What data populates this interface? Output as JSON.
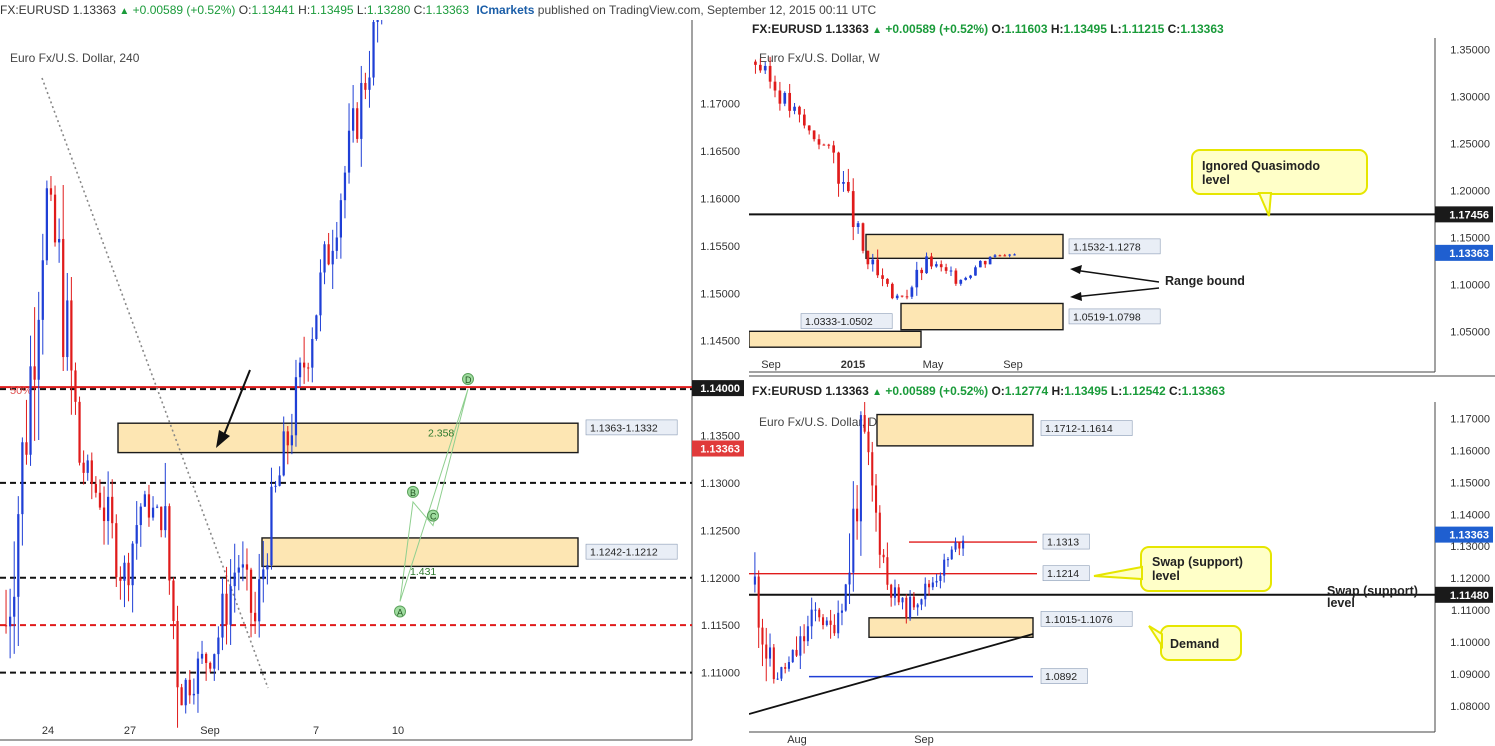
{
  "topbar": {
    "symbol": "FX:EURUSD",
    "price": "1.13363",
    "change": "+0.00589 (+0.52%)",
    "o_label": "O:",
    "o": "1.13441",
    "h_label": "H:",
    "h": "1.13495",
    "l_label": "L:",
    "l": "1.13280",
    "c_label": "C:",
    "c": "1.13363",
    "brand": "ICmarkets",
    "published": "published on TradingView.com, September 12, 2015 00:11 UTC"
  },
  "colors": {
    "up": "#1f3fd6",
    "down": "#e01b1b",
    "zone_fill": "#fde6b3",
    "zone_border": "#1a1a1a",
    "callout_fill": "#ffffc8",
    "callout_border": "#e6e600",
    "price_tag": "#1f5fd0",
    "red_tag": "#e03a3a",
    "black_tag": "#1a1a1a"
  },
  "chart_data": [
    {
      "type": "candlestick",
      "panel": "h4",
      "title": "Euro Fx/U.S. Dollar, 240",
      "ylim": [
        1.105,
        1.1765
      ],
      "y_ticks": [
        "1.17000",
        "1.16500",
        "1.16000",
        "1.15500",
        "1.15000",
        "1.14500",
        "1.14000",
        "1.13500",
        "1.13000",
        "1.12500",
        "1.12000",
        "1.11500",
        "1.11000"
      ],
      "x_ticks": [
        "24",
        "27",
        "Sep",
        "7",
        "10"
      ],
      "levels": [
        {
          "value": 1.14,
          "label": "1.14000",
          "style": "dashed-red-black",
          "tag": "black"
        },
        {
          "value": 1.13,
          "label": "1.13000",
          "style": "dashed-black",
          "tag": "plain"
        },
        {
          "value": 1.12,
          "label": "1.12000",
          "style": "dashed-black",
          "tag": "plain"
        },
        {
          "value": 1.115,
          "label": "1.11500",
          "style": "dashed-red",
          "tag": "plain"
        },
        {
          "value": 1.11,
          "label": "1.11000",
          "style": "dashed-black",
          "tag": "plain"
        }
      ],
      "current_price": {
        "value": 1.13363,
        "label": "1.13363"
      },
      "zones": [
        {
          "high": 1.1363,
          "low": 1.1332,
          "label": "1.1363-1.1332"
        },
        {
          "high": 1.1242,
          "low": 1.1212,
          "label": "1.1242-1.1212"
        }
      ],
      "fib_label": "50%",
      "harmonic": {
        "points": [
          "A",
          "B",
          "C",
          "D"
        ],
        "ratios": [
          "2.358",
          "1.431"
        ]
      }
    },
    {
      "type": "candlestick",
      "panel": "weekly",
      "header": {
        "symbol": "FX:EURUSD",
        "price": "1.13363",
        "change": "+0.00589 (+0.52%)",
        "o": "1.11603",
        "h": "1.13495",
        "l": "1.11215",
        "c": "1.13363"
      },
      "title": "Euro Fx/U.S. Dollar, W",
      "ylim": [
        1.025,
        1.36
      ],
      "y_ticks": [
        "1.35000",
        "1.30000",
        "1.25000",
        "1.20000",
        "1.15000",
        "1.10000",
        "1.05000"
      ],
      "x_ticks": [
        "Sep",
        "2015",
        "May",
        "Sep"
      ],
      "levels": [
        {
          "value": 1.17456,
          "label": "1.17456",
          "tag": "black"
        }
      ],
      "current_price": {
        "value": 1.13363,
        "label": "1.13363"
      },
      "zones": [
        {
          "high": 1.1532,
          "low": 1.1278,
          "label": "1.1532-1.1278"
        },
        {
          "high": 1.0798,
          "low": 1.0519,
          "label": "1.0519-1.0798"
        },
        {
          "high": 1.0502,
          "low": 1.0333,
          "label": "1.0333-1.0502"
        }
      ],
      "annotations": {
        "quasimodo": [
          "Ignored Quasimodo",
          "level"
        ],
        "range": "Range bound"
      }
    },
    {
      "type": "candlestick",
      "panel": "daily",
      "header": {
        "symbol": "FX:EURUSD",
        "price": "1.13363",
        "change": "+0.00589 (+0.52%)",
        "o": "1.12774",
        "h": "1.13495",
        "l": "1.12542",
        "c": "1.13363"
      },
      "title": "Euro Fx/U.S. Dollar, D",
      "ylim": [
        1.075,
        1.1745
      ],
      "y_ticks": [
        "1.17000",
        "1.16000",
        "1.15000",
        "1.14000",
        "1.13000",
        "1.12000",
        "1.11000",
        "1.10000",
        "1.09000",
        "1.08000"
      ],
      "x_ticks": [
        "Aug",
        "Sep"
      ],
      "levels": [
        {
          "value": 1.1313,
          "label": "1.1313",
          "style": "red"
        },
        {
          "value": 1.1214,
          "label": "1.1214",
          "style": "red"
        },
        {
          "value": 1.1148,
          "label": "1.11480",
          "style": "black",
          "tag": "black"
        },
        {
          "value": 1.0892,
          "label": "1.0892",
          "style": "blue"
        }
      ],
      "current_price": {
        "value": 1.13363,
        "label": "1.13363"
      },
      "zones": [
        {
          "high": 1.1712,
          "low": 1.1614,
          "label": "1.1712-1.1614"
        },
        {
          "high": 1.1076,
          "low": 1.1015,
          "label": "1.1015-1.1076"
        }
      ],
      "annotations": {
        "swap": [
          "Swap (support)",
          "level"
        ],
        "swap2": [
          "Swap (support)",
          "level"
        ],
        "demand": "Demand"
      }
    }
  ]
}
